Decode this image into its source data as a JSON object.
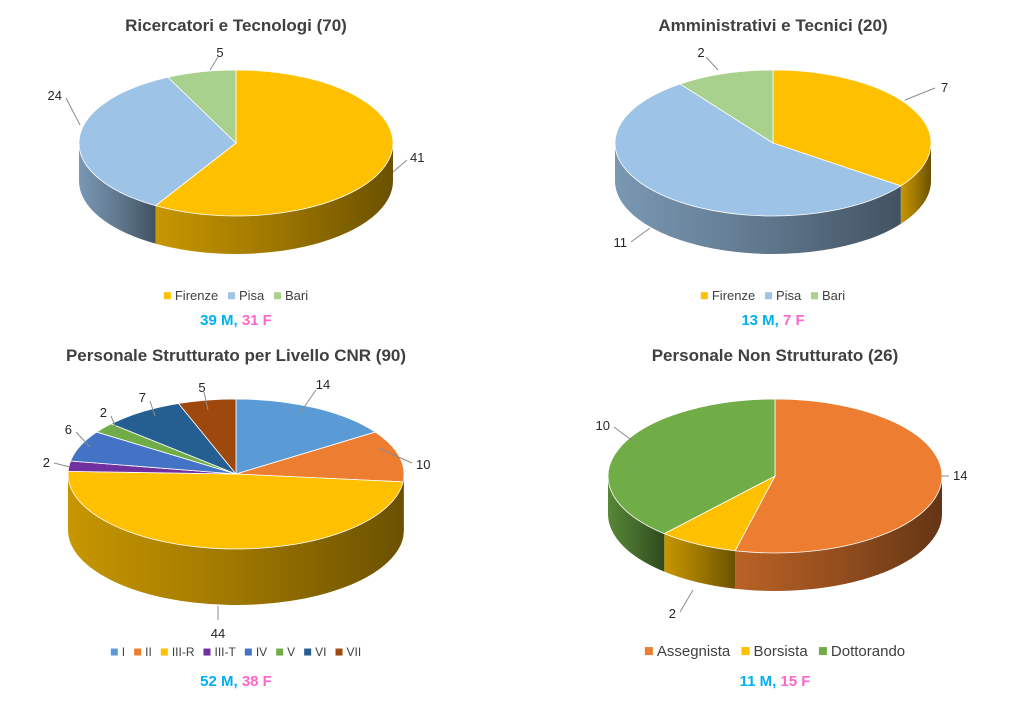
{
  "colors": {
    "firenze": "#FFC000",
    "pisa": "#9DC3E6",
    "bari": "#A9D18E",
    "male": "#00B0F0",
    "female": "#FF66CC",
    "title": "#404040",
    "I": "#5B9BD5",
    "II": "#ED7D31",
    "III-R": "#FFC000",
    "III-T": "#7030A0",
    "IV": "#4472C4",
    "V": "#70AD47",
    "VI": "#255E91",
    "VII": "#9E480E",
    "assegnista": "#ED7D31",
    "borsista": "#FFC000",
    "dottorando": "#70AD47"
  },
  "chart_data": [
    {
      "type": "pie",
      "style": "3d",
      "title": "Ricercatori e Tecnologi (70)",
      "categories": [
        "Firenze",
        "Pisa",
        "Bari"
      ],
      "values": [
        41,
        24,
        5
      ],
      "color_keys": [
        "firenze",
        "pisa",
        "bari"
      ],
      "legend": [
        "Firenze",
        "Pisa",
        "Bari"
      ],
      "legend_placement": "bottom",
      "gender": {
        "male": "39 M,",
        "female": "31 F"
      }
    },
    {
      "type": "pie",
      "style": "3d",
      "title": "Amministrativi e Tecnici (20)",
      "categories": [
        "Firenze",
        "Pisa",
        "Bari"
      ],
      "values": [
        7,
        11,
        2
      ],
      "color_keys": [
        "firenze",
        "pisa",
        "bari"
      ],
      "legend": [
        "Firenze",
        "Pisa",
        "Bari"
      ],
      "legend_placement": "bottom",
      "gender": {
        "male": "13 M,",
        "female": "7 F"
      }
    },
    {
      "type": "pie",
      "style": "3d",
      "title": "Personale Strutturato per Livello CNR (90)",
      "categories": [
        "I",
        "II",
        "III-R",
        "III-T",
        "IV",
        "V",
        "VI",
        "VII"
      ],
      "values": [
        14,
        10,
        44,
        2,
        6,
        2,
        7,
        5
      ],
      "color_keys": [
        "I",
        "II",
        "III-R",
        "III-T",
        "IV",
        "V",
        "VI",
        "VII"
      ],
      "legend": [
        "I",
        "II",
        "III-R",
        "III-T",
        "IV",
        "V",
        "VI",
        "VII"
      ],
      "legend_placement": "bottom",
      "gender": {
        "male": "52 M,",
        "female": "38 F"
      }
    },
    {
      "type": "pie",
      "style": "3d",
      "title": "Personale Non Strutturato (26)",
      "categories": [
        "Assegnista",
        "Borsista",
        "Dottorando"
      ],
      "values": [
        14,
        2,
        10
      ],
      "color_keys": [
        "assegnista",
        "borsista",
        "dottorando"
      ],
      "legend": [
        "Assegnista",
        "Borsista",
        "Dottorando"
      ],
      "legend_placement": "bottom",
      "gender": {
        "male": "11 M,",
        "female": "15 F"
      }
    }
  ]
}
